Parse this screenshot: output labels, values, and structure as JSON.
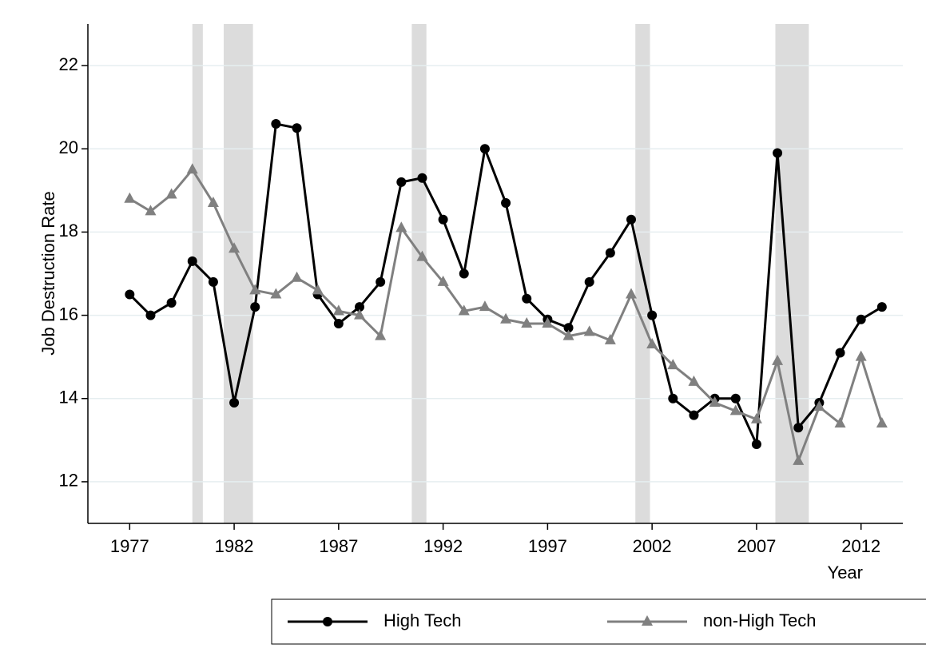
{
  "chart_data": {
    "type": "line",
    "y_label": "Job Destruction Rate",
    "x_label": "Year",
    "x": [
      1977,
      1978,
      1979,
      1980,
      1981,
      1982,
      1983,
      1984,
      1985,
      1986,
      1987,
      1988,
      1989,
      1990,
      1991,
      1992,
      1993,
      1994,
      1995,
      1996,
      1997,
      1998,
      1999,
      2000,
      2001,
      2002,
      2003,
      2004,
      2005,
      2006,
      2007,
      2008,
      2009,
      2010,
      2011,
      2012,
      2013
    ],
    "series": [
      {
        "name": "High Tech",
        "color": "#000000",
        "marker": "circle",
        "values": [
          16.5,
          16.0,
          16.3,
          17.3,
          16.8,
          13.9,
          16.2,
          20.6,
          20.5,
          16.5,
          15.8,
          16.2,
          16.8,
          19.2,
          19.3,
          18.3,
          17.0,
          20.0,
          18.7,
          16.4,
          15.9,
          15.7,
          16.8,
          17.5,
          18.3,
          16.0,
          14.0,
          13.6,
          14.0,
          14.0,
          12.9,
          19.9,
          13.3,
          13.9,
          15.1,
          15.9,
          16.2
        ]
      },
      {
        "name": "non-High Tech",
        "color": "#808080",
        "marker": "triangle",
        "values": [
          18.8,
          18.5,
          18.9,
          19.5,
          18.7,
          17.6,
          16.6,
          16.5,
          16.9,
          16.6,
          16.1,
          16.0,
          15.5,
          18.1,
          17.4,
          16.8,
          16.1,
          16.2,
          15.9,
          15.8,
          15.8,
          15.5,
          15.6,
          15.4,
          16.5,
          15.3,
          14.8,
          14.4,
          13.9,
          13.7,
          13.5,
          14.9,
          12.5,
          13.8,
          13.4,
          15.0,
          13.4
        ]
      }
    ],
    "recessions": [
      [
        1980.0,
        1980.5
      ],
      [
        1981.5,
        1982.9
      ],
      [
        1990.5,
        1991.2
      ],
      [
        2001.2,
        2001.9
      ],
      [
        2007.9,
        2009.5
      ]
    ],
    "xlim": [
      1975,
      2014
    ],
    "xticks": [
      1977,
      1982,
      1987,
      1992,
      1997,
      2002,
      2007,
      2012
    ],
    "ylim": [
      11,
      23
    ],
    "yticks": [
      12,
      14,
      16,
      18,
      20,
      22
    ],
    "grid": true,
    "legend": "bottom"
  }
}
